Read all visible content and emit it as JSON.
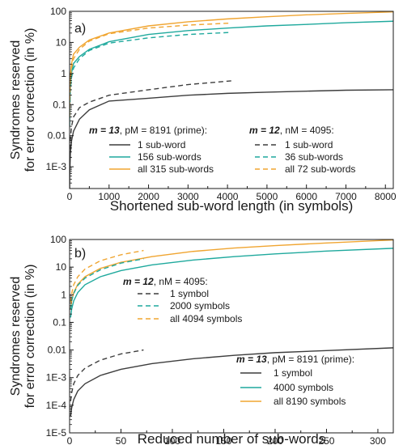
{
  "colors": {
    "gray": "#3d3d3d",
    "teal": "#1fa99d",
    "orange": "#f0a531",
    "axis": "#1a1a1a"
  },
  "chart_data": [
    {
      "panel_label": "a)",
      "type": "line",
      "xlabel": "Shortened sub-word length (in symbols)",
      "ylabel_line1": "Syndromes reserved",
      "ylabel_line2": "for error correction (in %)",
      "xlim": [
        0,
        8200
      ],
      "x_ticks": [
        0,
        1000,
        2000,
        3000,
        4000,
        5000,
        6000,
        7000,
        8000
      ],
      "x_tick_labels": [
        "0",
        "1000",
        "2000",
        "3000",
        "4000",
        "5000",
        "6000",
        "7000",
        "8000"
      ],
      "y_scale": "log",
      "ylim_exp": [
        -3.7,
        2
      ],
      "y_ticks_exp": [
        -3,
        -2,
        -1,
        0,
        1,
        2
      ],
      "y_tick_labels": [
        "1E-3",
        "0.01",
        "0.1",
        "1",
        "10",
        "100"
      ],
      "legend_groups": [
        {
          "title_bold": "m = 13",
          "title_rest": ", pM = 8191 (prime):",
          "entries": [
            "1 sub-word",
            "156 sub-words",
            "all 315 sub-words"
          ]
        },
        {
          "title_bold": "m = 12",
          "title_rest": ", nM = 4095:",
          "entries": [
            "1 sub-word",
            "36 sub-words",
            "all 72 sub-words"
          ]
        }
      ],
      "series": [
        {
          "name": "1 sub-word",
          "group": "m = 13",
          "color": "gray",
          "dash": false,
          "x": [
            1,
            5,
            20,
            50,
            100,
            250,
            500,
            1000,
            2000,
            3000,
            4000,
            5000,
            6000,
            7000,
            8190
          ],
          "y": [
            0.00018,
            0.00064,
            0.0027,
            0.0069,
            0.014,
            0.034,
            0.068,
            0.13,
            0.16,
            0.2,
            0.23,
            0.25,
            0.27,
            0.29,
            0.3
          ]
        },
        {
          "name": "156 sub-words",
          "group": "m = 13",
          "color": "teal",
          "dash": false,
          "x": [
            1,
            5,
            20,
            50,
            100,
            250,
            500,
            1000,
            2000,
            3000,
            4000,
            5000,
            6000,
            7000,
            8190
          ],
          "y": [
            0.03,
            0.1,
            0.42,
            1.05,
            2.1,
            3.5,
            6,
            10.5,
            18,
            24,
            29,
            34,
            38,
            43,
            48
          ]
        },
        {
          "name": "all 315 sub-words",
          "group": "m = 13",
          "color": "orange",
          "dash": false,
          "x": [
            1,
            5,
            20,
            50,
            100,
            250,
            500,
            1000,
            2000,
            3000,
            4000,
            5000,
            6000,
            7000,
            8190
          ],
          "y": [
            0.06,
            0.2,
            0.85,
            2.1,
            4.2,
            7,
            12,
            20,
            34,
            46,
            57,
            67,
            77,
            86,
            96
          ]
        },
        {
          "name": "1 sub-word",
          "group": "m = 12",
          "color": "gray",
          "dash": true,
          "x": [
            1,
            5,
            20,
            50,
            100,
            250,
            500,
            1000,
            2000,
            3000,
            4095
          ],
          "y": [
            0.0006,
            0.002,
            0.008,
            0.02,
            0.04,
            0.08,
            0.12,
            0.2,
            0.3,
            0.44,
            0.58
          ]
        },
        {
          "name": "36 sub-words",
          "group": "m = 12",
          "color": "teal",
          "dash": true,
          "x": [
            1,
            5,
            20,
            50,
            100,
            250,
            500,
            1000,
            2000,
            3000,
            4095
          ],
          "y": [
            0.02,
            0.07,
            0.3,
            0.75,
            1.5,
            3,
            5.5,
            9.5,
            14,
            18,
            21
          ]
        },
        {
          "name": "all 72 sub-words",
          "group": "m = 12",
          "color": "orange",
          "dash": true,
          "x": [
            1,
            5,
            20,
            50,
            100,
            250,
            500,
            1000,
            2000,
            3000,
            4095
          ],
          "y": [
            0.04,
            0.15,
            0.6,
            1.5,
            3,
            6,
            11,
            19,
            29,
            36,
            42
          ]
        }
      ]
    },
    {
      "panel_label": "b)",
      "type": "line",
      "xlabel": "Reduced number of sub-words",
      "ylabel_line1": "Syndromes reserved",
      "ylabel_line2": "for error correction (in %)",
      "xlim": [
        0,
        315
      ],
      "x_ticks": [
        0,
        50,
        100,
        150,
        200,
        250,
        300
      ],
      "x_tick_labels": [
        "0",
        "50",
        "100",
        "150",
        "200",
        "250",
        "300"
      ],
      "y_scale": "log",
      "ylim_exp": [
        -5,
        2
      ],
      "y_ticks_exp": [
        -5,
        -4,
        -3,
        -2,
        -1,
        0,
        1,
        2
      ],
      "y_tick_labels": [
        "1E-5",
        "1E-4",
        "1E-3",
        "0.01",
        "0.1",
        "1",
        "10",
        "100"
      ],
      "legend_groups": [
        {
          "title_bold": "m = 12",
          "title_rest": ", nM = 4095:",
          "entries": [
            "1 symbol",
            "2000 symbols",
            "all 4094 symbols"
          ]
        },
        {
          "title_bold": "m = 13",
          "title_rest": ", pM = 8191 (prime):",
          "entries": [
            "1 symbol",
            "4000 symbols",
            "all 8190 symbols"
          ]
        }
      ],
      "series": [
        {
          "name": "1 symbol",
          "group": "m = 13",
          "color": "gray",
          "dash": false,
          "x": [
            1,
            2,
            4,
            8,
            15,
            30,
            50,
            80,
            120,
            160,
            200,
            250,
            315
          ],
          "y": [
            4e-05,
            8e-05,
            0.00016,
            0.00033,
            0.0006,
            0.0012,
            0.002,
            0.0032,
            0.0048,
            0.0064,
            0.008,
            0.0095,
            0.012
          ]
        },
        {
          "name": "4000 symbols",
          "group": "m = 13",
          "color": "teal",
          "dash": false,
          "x": [
            1,
            2,
            4,
            8,
            15,
            30,
            50,
            80,
            120,
            160,
            200,
            250,
            315
          ],
          "y": [
            0.15,
            0.3,
            0.6,
            1.2,
            2.3,
            4.5,
            7.5,
            12,
            18,
            24,
            30,
            38,
            48
          ]
        },
        {
          "name": "all 8190 symbols",
          "group": "m = 13",
          "color": "orange",
          "dash": false,
          "x": [
            1,
            2,
            4,
            8,
            15,
            30,
            50,
            80,
            120,
            160,
            200,
            250,
            315
          ],
          "y": [
            0.3,
            0.6,
            1.2,
            2.4,
            4.5,
            9,
            15,
            24,
            37,
            49,
            60,
            75,
            96
          ]
        },
        {
          "name": "1 symbol",
          "group": "m = 12",
          "color": "gray",
          "dash": true,
          "x": [
            1,
            2,
            4,
            8,
            15,
            30,
            50,
            72
          ],
          "y": [
            0.00014,
            0.00028,
            0.0006,
            0.0012,
            0.0022,
            0.0043,
            0.0072,
            0.01
          ]
        },
        {
          "name": "2000 symbols",
          "group": "m = 12",
          "color": "teal",
          "dash": true,
          "x": [
            1,
            2,
            4,
            8,
            15,
            30,
            50,
            72
          ],
          "y": [
            0.3,
            0.6,
            1.1,
            2.2,
            4,
            8,
            14,
            20
          ]
        },
        {
          "name": "all 4094 symbols",
          "group": "m = 12",
          "color": "orange",
          "dash": true,
          "x": [
            1,
            2,
            4,
            8,
            15,
            30,
            50,
            72
          ],
          "y": [
            0.55,
            1.1,
            2.3,
            4.5,
            8.5,
            17,
            28,
            40
          ]
        }
      ]
    }
  ]
}
